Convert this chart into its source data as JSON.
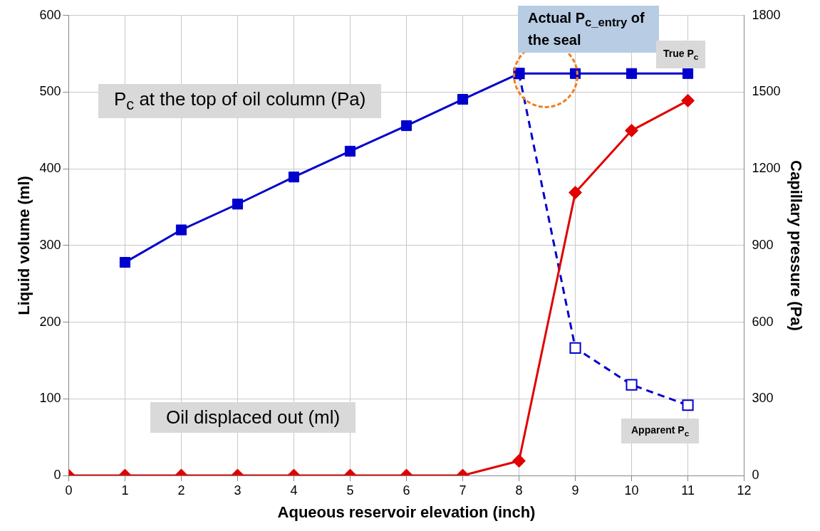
{
  "chart_data": {
    "type": "line",
    "xlabel": "Aqueous reservoir elevation (inch)",
    "ylabel": "Liquid volume (ml)",
    "y2label": "Capillary pressure (Pa)",
    "xlim": [
      0,
      12
    ],
    "xticks": [
      0,
      1,
      2,
      3,
      4,
      5,
      6,
      7,
      8,
      9,
      10,
      11,
      12
    ],
    "ylim": [
      0,
      600
    ],
    "yticks": [
      0,
      100,
      200,
      300,
      400,
      500,
      600
    ],
    "y2lim": [
      0,
      1800
    ],
    "y2ticks": [
      0,
      300,
      600,
      900,
      1200,
      1500,
      1800
    ],
    "grid": true,
    "legend": false,
    "series": [
      {
        "name": "Oil displaced out (ml)",
        "color": "#e00000",
        "marker": "diamond",
        "line_style": "solid",
        "x": [
          0,
          1,
          2,
          3,
          4,
          5,
          6,
          7,
          8,
          9,
          10,
          11
        ],
        "values": [
          0,
          0,
          0,
          0,
          0,
          0,
          0,
          0,
          19,
          369,
          450,
          489
        ]
      },
      {
        "name": "True P$_{c}$",
        "color": "#0000cc",
        "marker": "square",
        "line_style": "solid",
        "axis": "y2",
        "x": [
          1,
          2,
          3,
          4,
          5,
          6,
          7,
          8,
          9,
          10,
          11
        ],
        "values": [
          834,
          961,
          1062,
          1168,
          1269,
          1369,
          1472,
          1573,
          1573,
          1573,
          1573
        ]
      },
      {
        "name": "Apparent P$_{c}$",
        "color": "#0000cc",
        "marker": "square",
        "line_style": "dashed",
        "axis": "y2",
        "x": [
          8,
          9,
          10,
          11
        ],
        "values": [
          1573,
          499,
          355,
          275
        ]
      }
    ],
    "annotations": [
      "P$_{c}$ at the top of oil column (Pa)",
      "Actual P$_{c_entry}$ of the seal"
    ]
  }
}
